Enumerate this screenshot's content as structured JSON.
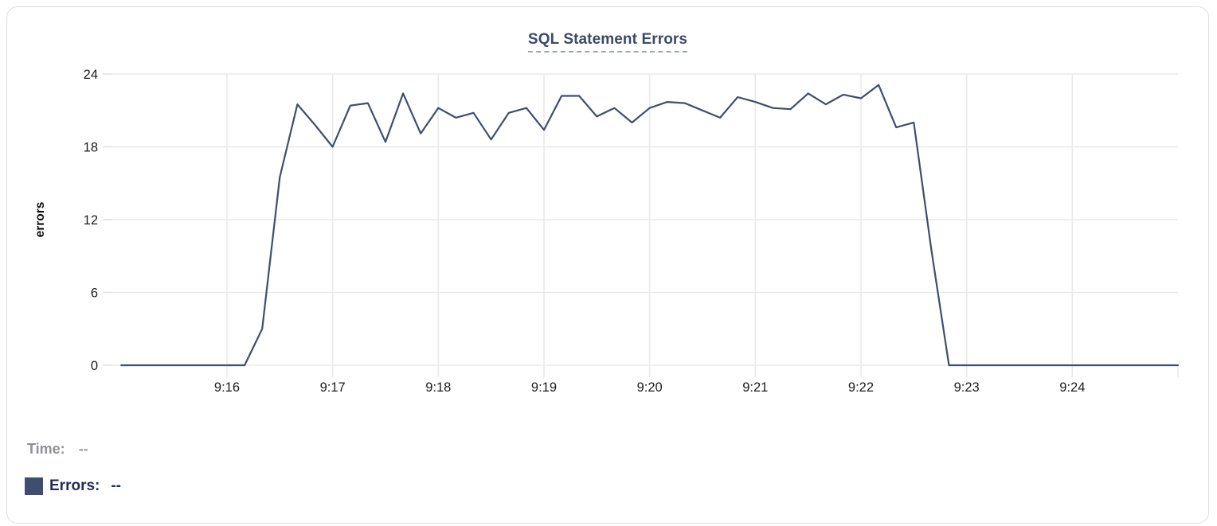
{
  "chart": {
    "title": "SQL Statement Errors"
  },
  "legend": {
    "time_label": "Time:",
    "time_value": "--",
    "errors_label": "Errors:",
    "errors_value": "--"
  },
  "colors": {
    "line": "#3E4E6F",
    "title": "#3A4A6B",
    "title_underline": "#9AA6C6",
    "grid": "#EAEAEA",
    "tick": "#E0E0E0",
    "axis_text": "#1C1C1C",
    "legend_gray": "#8E9196",
    "legend_navy": "#1F2C55",
    "swatch": "#3E4E6F"
  },
  "chart_data": {
    "type": "line",
    "title": "SQL Statement Errors",
    "xlabel": "",
    "ylabel": "errors",
    "series_name": "Errors",
    "grid": true,
    "legend_position": "bottom-left",
    "ylim": [
      0,
      24
    ],
    "y_ticks": [
      0,
      6,
      12,
      18,
      24
    ],
    "x_range": [
      "9:15:00",
      "9:25:00"
    ],
    "sample_interval_seconds": 10,
    "x_tick_labels": [
      "9:16",
      "9:17",
      "9:18",
      "9:19",
      "9:20",
      "9:21",
      "9:22",
      "9:23",
      "9:24"
    ],
    "times": [
      "9:15:00",
      "9:15:10",
      "9:15:20",
      "9:15:30",
      "9:15:40",
      "9:15:50",
      "9:16:00",
      "9:16:10",
      "9:16:20",
      "9:16:30",
      "9:16:40",
      "9:16:50",
      "9:17:00",
      "9:17:10",
      "9:17:20",
      "9:17:30",
      "9:17:40",
      "9:17:50",
      "9:18:00",
      "9:18:10",
      "9:18:20",
      "9:18:30",
      "9:18:40",
      "9:18:50",
      "9:19:00",
      "9:19:10",
      "9:19:20",
      "9:19:30",
      "9:19:40",
      "9:19:50",
      "9:20:00",
      "9:20:10",
      "9:20:20",
      "9:20:30",
      "9:20:40",
      "9:20:50",
      "9:21:00",
      "9:21:10",
      "9:21:20",
      "9:21:30",
      "9:21:40",
      "9:21:50",
      "9:22:00",
      "9:22:10",
      "9:22:20",
      "9:22:30",
      "9:22:40",
      "9:22:50",
      "9:23:00",
      "9:23:10",
      "9:23:20",
      "9:23:30",
      "9:23:40",
      "9:23:50",
      "9:24:00",
      "9:24:10",
      "9:24:20",
      "9:24:30",
      "9:24:40",
      "9:24:50",
      "9:25:00"
    ],
    "values": [
      0,
      0,
      0,
      0,
      0,
      0,
      0,
      0,
      3,
      15.5,
      21.5,
      19.8,
      18,
      21.4,
      21.6,
      18.4,
      22.4,
      19.1,
      21.2,
      20.4,
      20.8,
      18.6,
      20.8,
      21.2,
      19.4,
      22.2,
      22.2,
      20.5,
      21.2,
      20,
      21.2,
      21.7,
      21.6,
      21,
      20.4,
      22.1,
      21.7,
      21.2,
      21.1,
      22.4,
      21.5,
      22.3,
      22,
      23.1,
      19.6,
      20,
      9.5,
      0,
      0,
      0,
      0,
      0,
      0,
      0,
      0,
      0,
      0,
      0,
      0,
      0,
      0
    ]
  }
}
